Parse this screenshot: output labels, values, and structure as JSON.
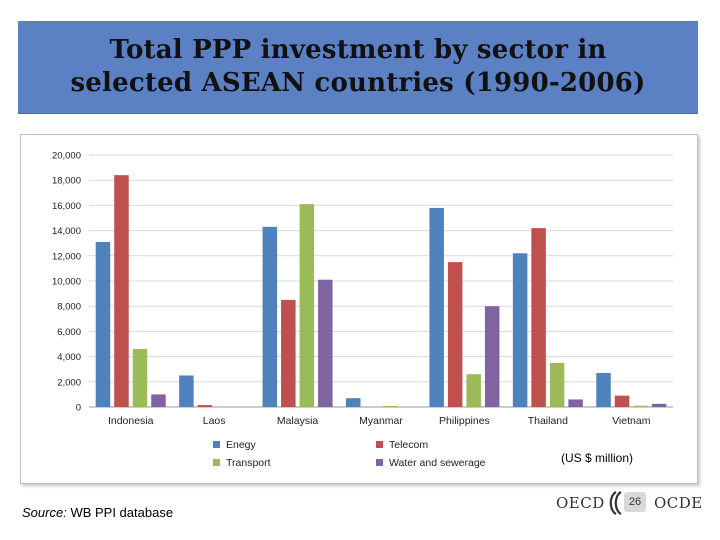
{
  "slide": {
    "title": "Total PPP investment by sector in\nselected ASEAN countries (1990-2006)",
    "unit_note": "(US $ million)",
    "source_label": "Source:",
    "source_text": "WB PPI database",
    "page_number": "26",
    "logo_left": "OECD",
    "logo_right": "OCDE"
  },
  "chart_data": {
    "type": "bar",
    "categories": [
      "Indonesia",
      "Laos",
      "Malaysia",
      "Myanmar",
      "Philippines",
      "Thailand",
      "Vietnam"
    ],
    "series": [
      {
        "name": "Enegy",
        "color": "#4f81bd",
        "values": [
          13100,
          2500,
          14300,
          700,
          15800,
          12200,
          2700
        ]
      },
      {
        "name": "Telecom",
        "color": "#c0504d",
        "values": [
          18400,
          150,
          8500,
          0,
          11500,
          14200,
          900
        ]
      },
      {
        "name": "Transport",
        "color": "#9bbb59",
        "values": [
          4600,
          0,
          16100,
          50,
          2600,
          3500,
          100
        ]
      },
      {
        "name": "Water and sewerage",
        "color": "#8064a2",
        "values": [
          1000,
          0,
          10100,
          0,
          8000,
          600,
          250
        ]
      }
    ],
    "ylim": [
      0,
      20000
    ],
    "yticks": [
      "0",
      "2,000",
      "4,000",
      "6,000",
      "8,000",
      "10,000",
      "12,000",
      "14,000",
      "16,000",
      "18,000",
      "20,000"
    ],
    "grid": true,
    "legend_position": "bottom"
  }
}
